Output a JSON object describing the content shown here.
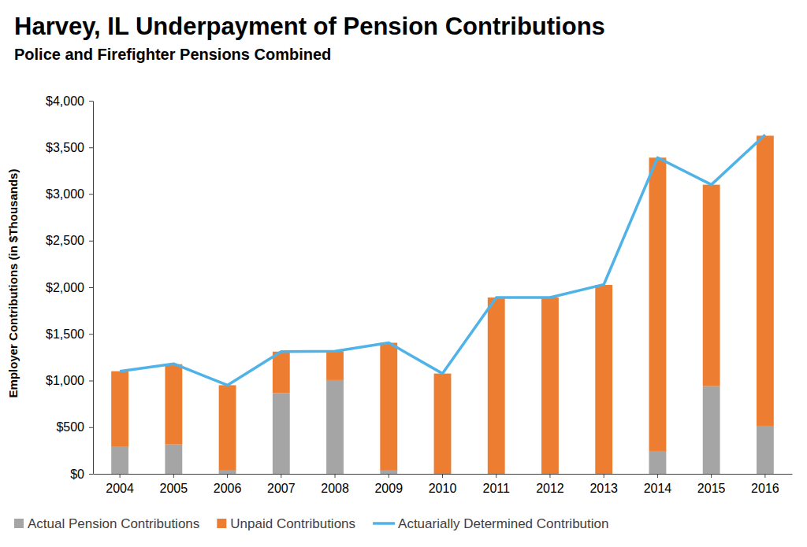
{
  "chart_data": {
    "type": "bar",
    "title": "Harvey, IL Underpayment of Pension Contributions",
    "subtitle": "Police and Firefighter Pensions Combined",
    "y_label": "Employer Contributions (in $Thousands)",
    "categories": [
      "2004",
      "2005",
      "2006",
      "2007",
      "2008",
      "2009",
      "2010",
      "2011",
      "2012",
      "2013",
      "2014",
      "2015",
      "2016"
    ],
    "stacked": true,
    "grid": false,
    "legend": "bottom",
    "series": [
      {
        "name": "Actual Pension Contributions",
        "type": "bar",
        "color": "#a5a5a5",
        "values": [
          295,
          315,
          35,
          865,
          1005,
          35,
          0,
          0,
          0,
          0,
          245,
          940,
          515
        ]
      },
      {
        "name": "Unpaid Contributions",
        "type": "bar",
        "color": "#ed7d31",
        "values": [
          805,
          860,
          915,
          445,
          310,
          1370,
          1075,
          1890,
          1890,
          2025,
          3145,
          2160,
          3110
        ]
      },
      {
        "name": "Actuarially Determined Contribution",
        "type": "line",
        "color": "#4fb3e8",
        "values": [
          1100,
          1180,
          950,
          1310,
          1315,
          1405,
          1075,
          1890,
          1890,
          2030,
          3390,
          3100,
          3635
        ]
      }
    ],
    "ylim": [
      0,
      4000
    ],
    "yticks": [
      {
        "value": 0,
        "label": "$0"
      },
      {
        "value": 500,
        "label": "$500"
      },
      {
        "value": 1000,
        "label": "$1,000"
      },
      {
        "value": 1500,
        "label": "$1,500"
      },
      {
        "value": 2000,
        "label": "$2,000"
      },
      {
        "value": 2500,
        "label": "$2,500"
      },
      {
        "value": 3000,
        "label": "$3,000"
      },
      {
        "value": 3500,
        "label": "$3,500"
      },
      {
        "value": 4000,
        "label": "$4,000"
      }
    ]
  }
}
